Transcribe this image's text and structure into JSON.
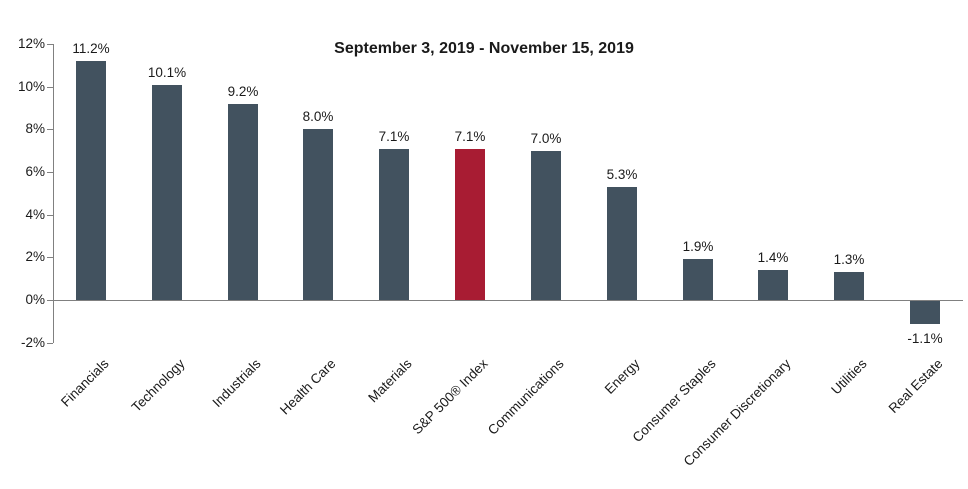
{
  "chart_data": {
    "type": "bar",
    "title": "September 3, 2019 - November 15, 2019",
    "categories": [
      "Financials",
      "Technology",
      "Industrials",
      "Health Care",
      "Materials",
      "S&P 500® Index",
      "Communications",
      "Energy",
      "Consumer Staples",
      "Consumer Discretionary",
      "Utilities",
      "Real Estate"
    ],
    "values": [
      11.2,
      10.1,
      9.2,
      8.0,
      7.1,
      7.1,
      7.0,
      5.3,
      1.9,
      1.4,
      1.3,
      -1.1
    ],
    "value_labels": [
      "11.2%",
      "10.1%",
      "9.2%",
      "8.0%",
      "7.1%",
      "7.1%",
      "7.0%",
      "5.3%",
      "1.9%",
      "1.4%",
      "1.3%",
      "-1.1%"
    ],
    "highlight_index": 5,
    "highlight_category": "S&P 500® Index",
    "xlabel": "",
    "ylabel": "",
    "y_axis": {
      "ticks": [
        12,
        10,
        8,
        6,
        4,
        2,
        0,
        -2
      ],
      "tick_labels": [
        "12%",
        "10%",
        "8%",
        "6%",
        "4%",
        "2%",
        "0%",
        "-2%"
      ],
      "ylim": [
        -2,
        12
      ]
    },
    "grid": false,
    "legend": "none",
    "colors": {
      "bar": "#42525f",
      "highlight": "#a81c33",
      "axis": "#808080",
      "text": "#1a1a1a"
    }
  }
}
